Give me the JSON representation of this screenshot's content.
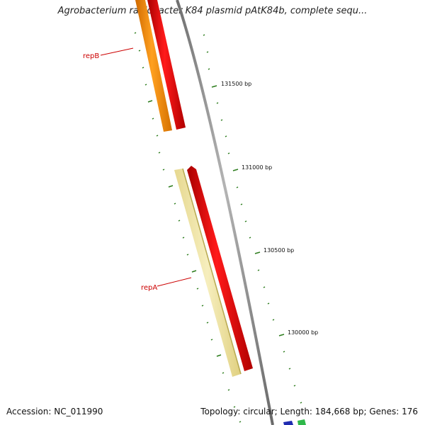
{
  "title": "Agrobacterium radiobacter K84 plasmid pAtK84b, complete sequ...",
  "accession_text": "Accession: NC_011990",
  "summary_text": "Topology: circular; Length: 184,668 bp; Genes: 176",
  "colors": {
    "backbone": "#8c8c8c",
    "tick": "#2e7d1e",
    "gene_label": "#cc0000",
    "red_strand": "#ee0000",
    "orange_gene": "#ff8c00",
    "pale_gene": "#f0e6a0"
  },
  "map": {
    "positions_bp": [
      "131500 bp",
      "131000 bp",
      "130500 bp",
      "130000 bp"
    ],
    "genes": [
      {
        "name": "repB",
        "color": "orange"
      },
      {
        "name": "repA",
        "color": "pale-yellow"
      }
    ]
  }
}
